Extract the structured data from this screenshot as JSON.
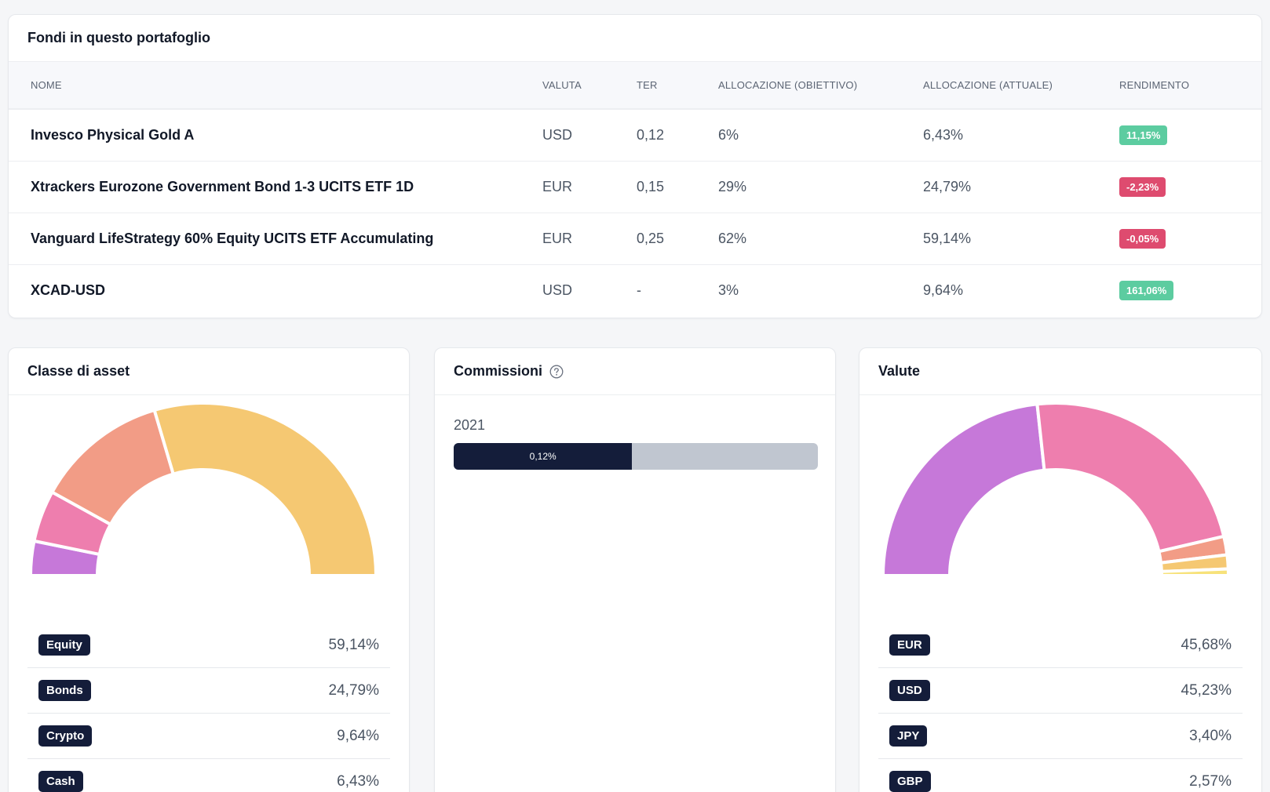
{
  "funds_card": {
    "title": "Fondi in questo portafoglio",
    "columns": [
      "NOME",
      "VALUTA",
      "TER",
      "ALLOCAZIONE (OBIETTIVO)",
      "ALLOCAZIONE (ATTUALE)",
      "RENDIMENTO"
    ],
    "rows": [
      {
        "name": "Invesco Physical Gold A",
        "currency": "USD",
        "ter": "0,12",
        "target": "6%",
        "actual": "6,43%",
        "return": "11,15%",
        "return_sign": "positive"
      },
      {
        "name": "Xtrackers Eurozone Government Bond 1-3 UCITS ETF 1D",
        "currency": "EUR",
        "ter": "0,15",
        "target": "29%",
        "actual": "24,79%",
        "return": "-2,23%",
        "return_sign": "negative"
      },
      {
        "name": "Vanguard LifeStrategy 60% Equity UCITS ETF Accumulating",
        "currency": "EUR",
        "ter": "0,25",
        "target": "62%",
        "actual": "59,14%",
        "return": "-0,05%",
        "return_sign": "negative"
      },
      {
        "name": "XCAD-USD",
        "currency": "USD",
        "ter": "-",
        "target": "3%",
        "actual": "9,64%",
        "return": "161,06%",
        "return_sign": "positive"
      }
    ]
  },
  "asset_class_card": {
    "title": "Classe di asset",
    "chart_data": {
      "type": "pie",
      "variant": "half-donut",
      "slices": [
        {
          "label": "Cash",
          "value": 6.43,
          "color": "#c678d9"
        },
        {
          "label": "Crypto",
          "value": 9.64,
          "color": "#ee7eae"
        },
        {
          "label": "Bonds",
          "value": 24.79,
          "color": "#f29c86"
        },
        {
          "label": "Equity",
          "value": 59.14,
          "color": "#f5c872"
        }
      ]
    },
    "legend": [
      {
        "label": "Equity",
        "value": "59,14%"
      },
      {
        "label": "Bonds",
        "value": "24,79%"
      },
      {
        "label": "Crypto",
        "value": "9,64%"
      },
      {
        "label": "Cash",
        "value": "6,43%"
      }
    ]
  },
  "fees_card": {
    "title": "Commissioni",
    "help_icon": "question-circle-icon",
    "year": "2021",
    "bar_label": "0,12%",
    "bar_fill_fraction": 0.49
  },
  "currency_card": {
    "title": "Valute",
    "chart_data": {
      "type": "pie",
      "variant": "half-donut",
      "slices": [
        {
          "label": "EUR",
          "value": 45.68,
          "color": "#c678d9"
        },
        {
          "label": "USD",
          "value": 45.23,
          "color": "#ee7eae"
        },
        {
          "label": "JPY",
          "value": 3.4,
          "color": "#f29c86"
        },
        {
          "label": "GBP",
          "value": 2.57,
          "color": "#f5c872"
        },
        {
          "label": "",
          "value": 1.2,
          "color": "#f7e27a"
        }
      ]
    },
    "legend": [
      {
        "label": "EUR",
        "value": "45,68%"
      },
      {
        "label": "USD",
        "value": "45,23%"
      },
      {
        "label": "JPY",
        "value": "3,40%"
      },
      {
        "label": "GBP",
        "value": "2,57%"
      }
    ]
  }
}
